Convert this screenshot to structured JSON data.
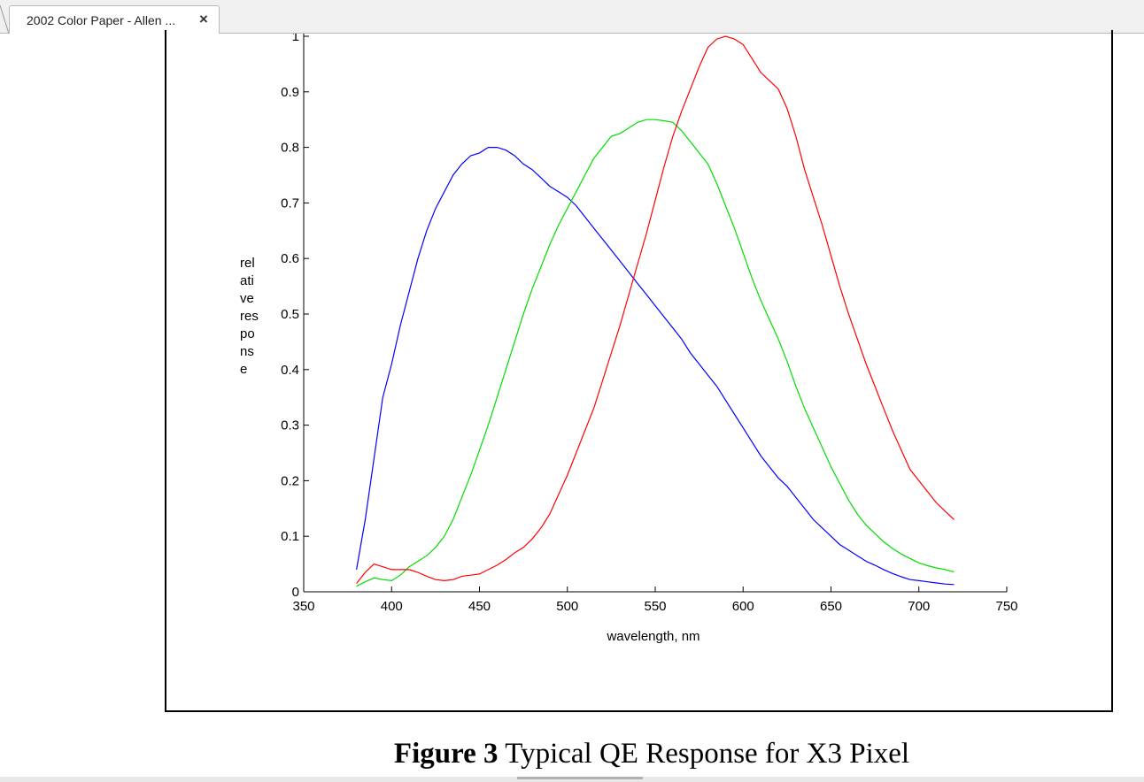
{
  "tab": {
    "title": "2002 Color Paper - Allen ...",
    "close_glyph": "×"
  },
  "caption": {
    "label": "Figure 3",
    "text": " Typical QE Response for X3 Pixel"
  },
  "chart_data": {
    "type": "line",
    "title": "",
    "xlabel": "wavelength, nm",
    "ylabel": "rel\nati\nve\nres\npo\nns\ne",
    "xlim": [
      350,
      750
    ],
    "ylim": [
      0,
      1
    ],
    "x_ticks": [
      350,
      400,
      450,
      500,
      550,
      600,
      650,
      700,
      750
    ],
    "y_ticks": [
      "0",
      "0.1",
      "0.2",
      "0.3",
      "0.4",
      "0.5",
      "0.6",
      "0.7",
      "0.8",
      "0.9",
      "1"
    ],
    "grid": false,
    "legend": "none",
    "x": [
      380,
      385,
      390,
      395,
      400,
      405,
      410,
      415,
      420,
      425,
      430,
      435,
      440,
      445,
      450,
      455,
      460,
      465,
      470,
      475,
      480,
      485,
      490,
      495,
      500,
      505,
      510,
      515,
      520,
      525,
      530,
      535,
      540,
      545,
      550,
      555,
      560,
      565,
      570,
      575,
      580,
      585,
      590,
      595,
      600,
      605,
      610,
      615,
      620,
      625,
      630,
      635,
      640,
      645,
      650,
      655,
      660,
      665,
      670,
      675,
      680,
      685,
      690,
      695,
      700,
      705,
      710,
      715,
      720
    ],
    "series": [
      {
        "color": "#0000ff",
        "values": [
          0.04,
          0.13,
          0.24,
          0.35,
          0.41,
          0.48,
          0.54,
          0.6,
          0.65,
          0.69,
          0.72,
          0.75,
          0.77,
          0.785,
          0.79,
          0.8,
          0.8,
          0.795,
          0.785,
          0.77,
          0.76,
          0.745,
          0.73,
          0.72,
          0.71,
          0.695,
          0.675,
          0.655,
          0.635,
          0.615,
          0.595,
          0.575,
          0.555,
          0.535,
          0.515,
          0.495,
          0.475,
          0.455,
          0.43,
          0.41,
          0.39,
          0.37,
          0.345,
          0.32,
          0.295,
          0.27,
          0.245,
          0.225,
          0.205,
          0.19,
          0.17,
          0.15,
          0.13,
          0.115,
          0.1,
          0.085,
          0.075,
          0.065,
          0.055,
          0.048,
          0.04,
          0.033,
          0.027,
          0.022,
          0.02,
          0.018,
          0.016,
          0.014,
          0.013
        ]
      },
      {
        "color": "#00dd00",
        "values": [
          0.01,
          0.018,
          0.025,
          0.022,
          0.02,
          0.03,
          0.045,
          0.055,
          0.065,
          0.08,
          0.1,
          0.13,
          0.17,
          0.21,
          0.255,
          0.3,
          0.35,
          0.4,
          0.45,
          0.5,
          0.545,
          0.585,
          0.625,
          0.66,
          0.69,
          0.72,
          0.75,
          0.78,
          0.8,
          0.82,
          0.825,
          0.835,
          0.845,
          0.85,
          0.85,
          0.848,
          0.845,
          0.83,
          0.81,
          0.79,
          0.77,
          0.735,
          0.695,
          0.655,
          0.61,
          0.565,
          0.525,
          0.49,
          0.455,
          0.415,
          0.37,
          0.33,
          0.295,
          0.26,
          0.225,
          0.195,
          0.165,
          0.14,
          0.12,
          0.105,
          0.09,
          0.078,
          0.068,
          0.06,
          0.052,
          0.047,
          0.043,
          0.04,
          0.036
        ]
      },
      {
        "color": "#ff0000",
        "values": [
          0.015,
          0.035,
          0.05,
          0.045,
          0.04,
          0.04,
          0.04,
          0.035,
          0.028,
          0.022,
          0.02,
          0.022,
          0.028,
          0.03,
          0.032,
          0.04,
          0.048,
          0.058,
          0.07,
          0.08,
          0.095,
          0.115,
          0.14,
          0.175,
          0.21,
          0.25,
          0.29,
          0.33,
          0.38,
          0.43,
          0.48,
          0.535,
          0.59,
          0.645,
          0.705,
          0.765,
          0.82,
          0.865,
          0.905,
          0.945,
          0.98,
          0.995,
          1.0,
          0.995,
          0.985,
          0.96,
          0.935,
          0.92,
          0.905,
          0.87,
          0.82,
          0.76,
          0.71,
          0.66,
          0.605,
          0.55,
          0.5,
          0.455,
          0.41,
          0.37,
          0.33,
          0.29,
          0.255,
          0.22,
          0.2,
          0.18,
          0.16,
          0.145,
          0.13
        ]
      }
    ]
  }
}
